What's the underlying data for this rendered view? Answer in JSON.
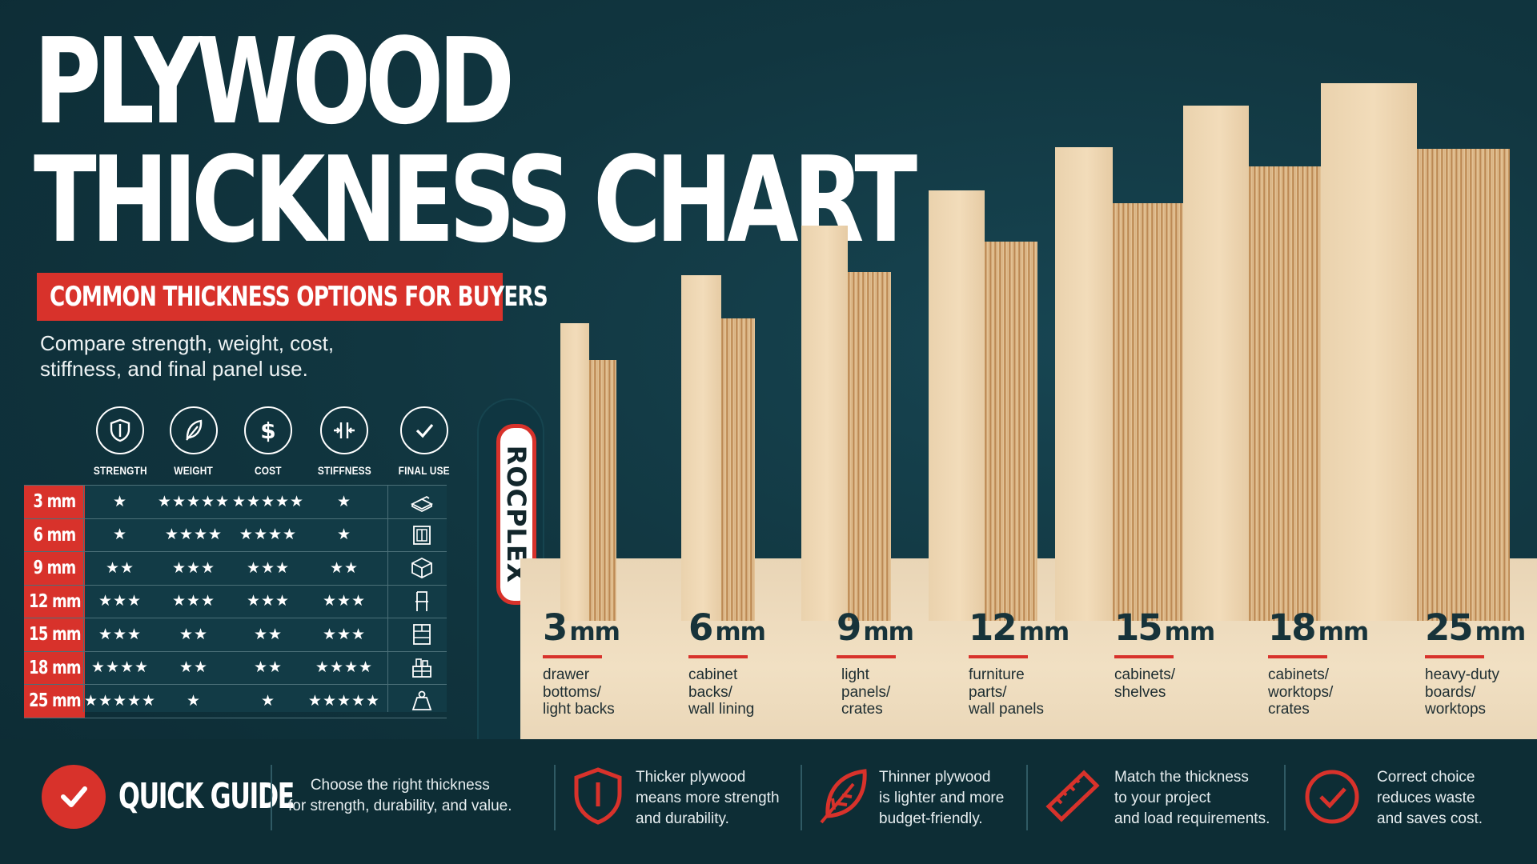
{
  "title": {
    "line1": "PLYWOOD",
    "line2": "THICKNESS CHART"
  },
  "subtitle_banner": "COMMON THICKNESS OPTIONS FOR BUYERS",
  "intro": "Compare strength, weight, cost, stiffness, and final panel use.",
  "table": {
    "columns": [
      {
        "label": "STRENGTH",
        "icon": "shield-icon"
      },
      {
        "label": "WEIGHT",
        "icon": "feather-icon"
      },
      {
        "label": "COST",
        "icon": "dollar-icon"
      },
      {
        "label": "STIFFNESS",
        "icon": "stiffness-icon"
      },
      {
        "label": "FINAL USE",
        "icon": "check-icon"
      }
    ],
    "rows": [
      {
        "thickness": "3 mm",
        "strength": "★",
        "weight": "★★★★★",
        "cost": "★★★★★",
        "stiffness": "★",
        "use_icon": "drawer-icon"
      },
      {
        "thickness": "6 mm",
        "strength": "★",
        "weight": "★★★★",
        "cost": "★★★★",
        "stiffness": "★",
        "use_icon": "panel-icon"
      },
      {
        "thickness": "9 mm",
        "strength": "★★",
        "weight": "★★★",
        "cost": "★★★",
        "stiffness": "★★",
        "use_icon": "crate-icon"
      },
      {
        "thickness": "12 mm",
        "strength": "★★★",
        "weight": "★★★",
        "cost": "★★★",
        "stiffness": "★★★",
        "use_icon": "chair-icon"
      },
      {
        "thickness": "15 mm",
        "strength": "★★★",
        "weight": "★★",
        "cost": "★★",
        "stiffness": "★★★",
        "use_icon": "shelf-icon"
      },
      {
        "thickness": "18 mm",
        "strength": "★★★★",
        "weight": "★★",
        "cost": "★★",
        "stiffness": "★★★★",
        "use_icon": "cabinet-icon"
      },
      {
        "thickness": "25 mm",
        "strength": "★★★★★",
        "weight": "★",
        "cost": "★",
        "stiffness": "★★★★★",
        "use_icon": "weight-icon"
      }
    ]
  },
  "brand_tag": "ROCPLEX",
  "boards": [
    {
      "value": "3",
      "unit": "mm",
      "use": [
        "drawer",
        "bottoms/",
        "light backs"
      ]
    },
    {
      "value": "6",
      "unit": "mm",
      "use": [
        "cabinet",
        "backs/",
        "wall lining"
      ]
    },
    {
      "value": "9",
      "unit": "mm",
      "use": [
        "light",
        "panels/",
        "crates"
      ]
    },
    {
      "value": "12",
      "unit": "mm",
      "use": [
        "furniture",
        "parts/",
        "wall panels"
      ]
    },
    {
      "value": "15",
      "unit": "mm",
      "use": [
        "cabinets/",
        "shelves"
      ]
    },
    {
      "value": "18",
      "unit": "mm",
      "use": [
        "cabinets/",
        "worktops/",
        "crates"
      ]
    },
    {
      "value": "25",
      "unit": "mm",
      "use": [
        "heavy-duty",
        "boards/",
        "worktops"
      ]
    }
  ],
  "guide": {
    "title": "QUICK GUIDE",
    "intro": [
      "Choose the right thickness",
      "for strength, durability, and value."
    ],
    "tips": [
      {
        "icon": "shield-icon",
        "lines": [
          "Thicker plywood",
          "means more strength",
          "and durability."
        ]
      },
      {
        "icon": "leaf-icon",
        "lines": [
          "Thinner plywood",
          "is lighter and more",
          "budget-friendly."
        ]
      },
      {
        "icon": "ruler-icon",
        "lines": [
          "Match the thickness",
          "to your project",
          "and load requirements."
        ]
      },
      {
        "icon": "check-circle-icon",
        "lines": [
          "Correct choice",
          "reduces waste",
          "and saves cost."
        ]
      }
    ]
  },
  "colors": {
    "background": "#113640",
    "accent": "#d8322b",
    "wood": "#ead2ad"
  }
}
